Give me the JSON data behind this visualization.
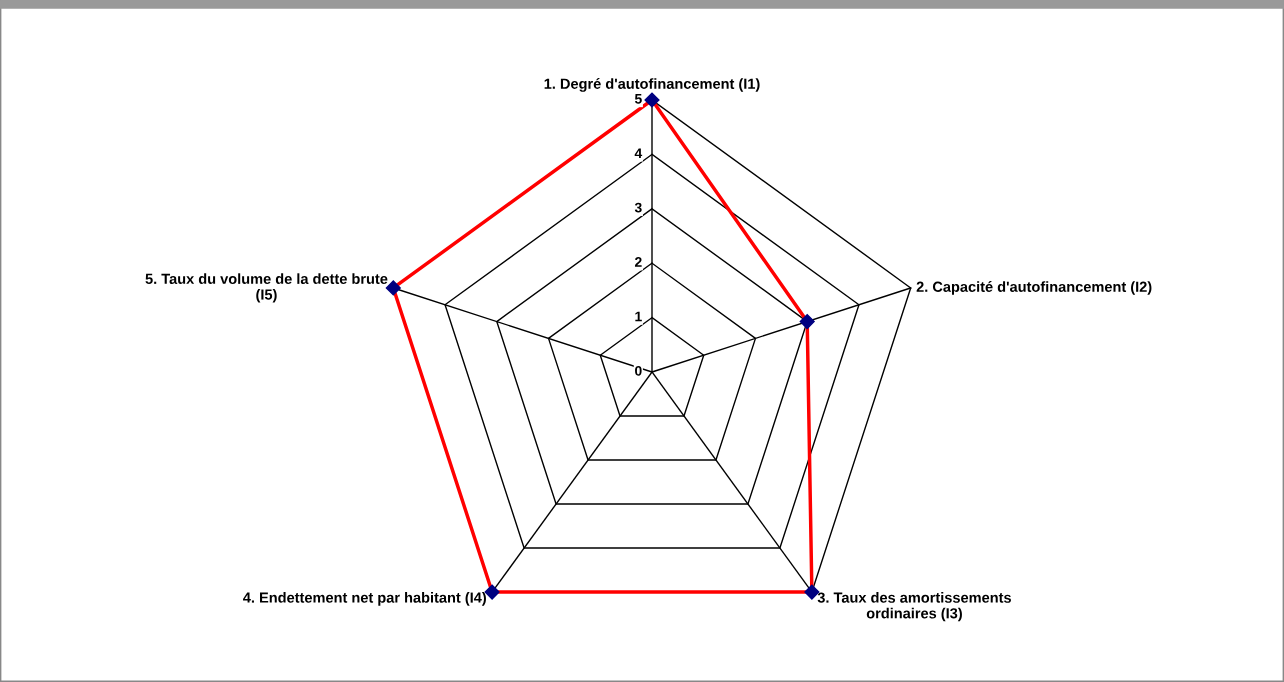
{
  "chart_data": {
    "type": "radar",
    "categories": [
      "1. Degré d'autofinancement (I1)",
      "2. Capacité d'autofinancement (I2)",
      "3. Taux des amortissements\nordinaires (I3)",
      "4. Endettement net par habitant (I4)",
      "5. Taux du volume de la dette brute\n(I5)"
    ],
    "series": [
      {
        "color": "#ff0000",
        "values": [
          5,
          3,
          5,
          5,
          5
        ]
      }
    ],
    "ylim": [
      0,
      5
    ],
    "yticks": [
      0,
      1,
      2,
      3,
      4,
      5
    ],
    "grid": true,
    "marker": "diamond",
    "line_style": "solid",
    "legend": false
  }
}
